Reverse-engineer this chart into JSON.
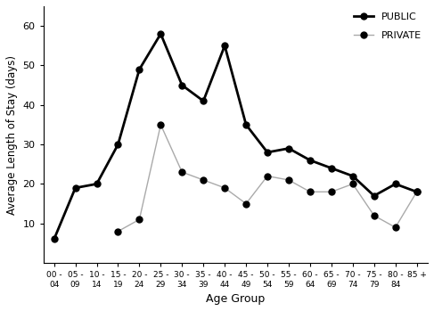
{
  "age_labels_top": [
    "00 -",
    "05 -",
    "10 -",
    "15 -",
    "20 -",
    "25 -",
    "30 -",
    "35 -",
    "40 -",
    "45 -",
    "50 -",
    "55 -",
    "60 -",
    "65 -",
    "70 -",
    "75 -",
    "80 -",
    "85 +"
  ],
  "age_labels_bot": [
    "04",
    "09",
    "14",
    "19",
    "24",
    "29",
    "34",
    "39",
    "44",
    "49",
    "54",
    "59",
    "64",
    "69",
    "74",
    "79",
    "84",
    ""
  ],
  "public": [
    6,
    19,
    20,
    30,
    49,
    58,
    45,
    41,
    55,
    35,
    28,
    29,
    26,
    24,
    22,
    17,
    20,
    18
  ],
  "private": [
    null,
    null,
    null,
    8,
    11,
    35,
    23,
    21,
    19,
    15,
    22,
    21,
    18,
    18,
    20,
    12,
    9,
    18
  ],
  "public_color": "#000000",
  "private_color": "#aaaaaa",
  "ylabel": "Average Length of Stay (days)",
  "ylim": [
    0,
    65
  ],
  "yticks": [
    10,
    20,
    30,
    40,
    50,
    60
  ],
  "legend_public": "PUBLIC",
  "legend_private": "PRIVATE",
  "linewidth_public": 2.0,
  "linewidth_private": 1.0,
  "marker_size": 5,
  "marker_style": "o"
}
